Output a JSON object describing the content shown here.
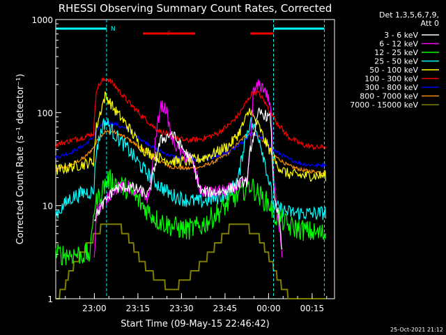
{
  "chart_data": {
    "type": "line",
    "title": "RHESSI Observing Summary Count Rates, Corrected",
    "xlabel": "Start Time (09-May-15 22:46:42)",
    "ylabel": "Corrected Count Rate (s⁻¹ detector⁻¹)",
    "yscale": "log",
    "ylim": [
      1,
      1000
    ],
    "xlim_minutes_from_start": [
      0,
      96
    ],
    "x_tick_labels": [
      "23:00",
      "23:15",
      "23:30",
      "23:45",
      "00:00",
      "00:15"
    ],
    "x_tick_minutes_from_start": [
      13.3,
      28.3,
      43.3,
      58.3,
      73.3,
      88.3
    ],
    "y_tick_labels": [
      "1",
      "10",
      "100",
      "1000"
    ],
    "y_tick_values": [
      1,
      10,
      100,
      1000
    ],
    "legend": {
      "header_line1": "Det 1,3,5,6,7,9,",
      "header_line2": "Att 0",
      "position": "right"
    },
    "flags": [
      {
        "label": "N",
        "color": "#00ffff",
        "segments": [
          [
            0,
            17.5
          ],
          [
            75,
            92.5
          ]
        ]
      },
      {
        "label": "F",
        "color": "#ff0000",
        "segments": [
          [
            30,
            48
          ],
          [
            67,
            75
          ]
        ]
      }
    ],
    "markers": [
      17.5,
      75,
      92.5
    ],
    "footer_timestamp": "25-Oct-2021 21:12",
    "series": [
      {
        "name": "3 - 6 keV",
        "color": "#ffffff",
        "x": [
          0,
          13,
          14,
          16,
          20,
          25,
          28,
          32,
          36,
          40,
          44,
          47,
          50,
          55,
          60,
          64,
          66,
          67,
          70,
          72,
          74,
          75,
          76,
          77,
          78
        ],
        "y": [
          null,
          7,
          8,
          10,
          15,
          16,
          15,
          13,
          50,
          60,
          40,
          30,
          14,
          14,
          15,
          18,
          18,
          40,
          100,
          95,
          85,
          15,
          10,
          7,
          3
        ]
      },
      {
        "name": "6 - 12 keV",
        "color": "#ff00ff",
        "x": [
          0,
          13,
          14,
          16,
          20,
          25,
          28,
          32,
          34,
          36,
          38,
          40,
          44,
          47,
          50,
          55,
          60,
          64,
          66,
          67,
          68,
          70,
          72,
          74,
          75,
          76,
          77,
          78
        ],
        "y": [
          null,
          2,
          9,
          10,
          15,
          16,
          14,
          12,
          40,
          120,
          110,
          50,
          35,
          30,
          14,
          14,
          15,
          17,
          18,
          45,
          160,
          200,
          180,
          120,
          20,
          10,
          6,
          3
        ]
      },
      {
        "name": "12 - 25 keV",
        "color": "#00ff00",
        "x": [
          0,
          12,
          13,
          16,
          18,
          20,
          25,
          30,
          35,
          40,
          45,
          50,
          55,
          60,
          65,
          67,
          70,
          74,
          75,
          78,
          80,
          85,
          90,
          93
        ],
        "y": [
          3,
          3,
          9,
          15,
          19,
          18,
          15,
          10,
          7,
          6,
          5.5,
          6,
          8,
          11,
          15,
          17,
          13,
          10,
          8,
          7,
          6,
          5.5,
          5,
          5
        ]
      },
      {
        "name": "25 - 50 keV",
        "color": "#00ffff",
        "x": [
          0,
          5,
          10,
          13,
          14,
          16,
          17,
          18,
          20,
          25,
          30,
          35,
          40,
          45,
          50,
          55,
          60,
          63,
          65,
          67,
          70,
          72,
          74,
          75,
          78,
          80,
          85,
          90,
          93
        ],
        "y": [
          8,
          12,
          14,
          14,
          40,
          70,
          80,
          75,
          60,
          40,
          25,
          17,
          13,
          11.5,
          11,
          12,
          14,
          20,
          50,
          80,
          55,
          30,
          15,
          10,
          9,
          8.5,
          8.3,
          8.2,
          8.5
        ]
      },
      {
        "name": "50 - 100 keV",
        "color": "#ffff00",
        "x": [
          0,
          5,
          10,
          13,
          14,
          16,
          17,
          18,
          20,
          25,
          30,
          35,
          40,
          45,
          50,
          55,
          60,
          63,
          65,
          67,
          68,
          70,
          72,
          74,
          76,
          78,
          80,
          85,
          90,
          93
        ],
        "y": [
          24,
          26,
          28,
          30,
          70,
          120,
          150,
          140,
          110,
          70,
          40,
          33,
          30,
          30,
          32,
          37,
          45,
          60,
          80,
          110,
          90,
          70,
          50,
          38,
          28,
          24,
          22,
          21,
          21,
          21
        ]
      },
      {
        "name": "100 - 300 keV",
        "color": "#ff0000",
        "x": [
          0,
          5,
          10,
          13,
          14,
          16,
          18,
          20,
          25,
          30,
          35,
          40,
          45,
          50,
          55,
          60,
          63,
          65,
          67,
          68,
          70,
          72,
          74,
          76,
          80,
          85,
          90,
          93
        ],
        "y": [
          45,
          50,
          55,
          60,
          180,
          220,
          230,
          200,
          130,
          90,
          65,
          55,
          50,
          52,
          58,
          75,
          95,
          120,
          150,
          170,
          160,
          130,
          100,
          80,
          55,
          45,
          42,
          43
        ]
      },
      {
        "name": "300 - 800 keV",
        "color": "#0000ff",
        "x": [
          0,
          5,
          10,
          13,
          15,
          17,
          20,
          25,
          30,
          35,
          40,
          45,
          50,
          55,
          60,
          65,
          67,
          70,
          72,
          75,
          80,
          85,
          90,
          93
        ],
        "y": [
          33,
          37,
          45,
          55,
          70,
          80,
          76,
          65,
          50,
          40,
          34,
          31,
          31,
          33,
          38,
          50,
          60,
          55,
          50,
          40,
          32,
          28,
          27,
          28
        ]
      },
      {
        "name": "800 - 7000 keV",
        "color": "#ff8c00",
        "x": [
          0,
          5,
          10,
          13,
          15,
          17,
          20,
          25,
          30,
          35,
          40,
          45,
          50,
          55,
          60,
          65,
          67,
          70,
          72,
          75,
          80,
          85,
          90,
          93
        ],
        "y": [
          24,
          27,
          33,
          42,
          55,
          62,
          62,
          52,
          40,
          31,
          26,
          25,
          26,
          30,
          38,
          55,
          60,
          55,
          48,
          35,
          27,
          24,
          23,
          23
        ]
      },
      {
        "name": "7000 - 15000 keV",
        "color": "#808000",
        "x": [
          0,
          3,
          5,
          8,
          11,
          13,
          15,
          17,
          20,
          23,
          25,
          28,
          32,
          36,
          40,
          44,
          48,
          52,
          56,
          58,
          60,
          62,
          65,
          67,
          69,
          71,
          73,
          75,
          77,
          80,
          85,
          90,
          93
        ],
        "y": [
          1,
          1.3,
          2,
          2.8,
          3.8,
          4.5,
          5.5,
          6.5,
          6.5,
          5.5,
          4.5,
          3,
          2,
          1.5,
          1.3,
          1.5,
          2,
          2.8,
          4,
          4.8,
          5.8,
          6.5,
          6.5,
          5.5,
          5,
          4,
          3,
          2.2,
          1.5,
          1.1,
          1,
          1,
          1
        ]
      }
    ]
  }
}
